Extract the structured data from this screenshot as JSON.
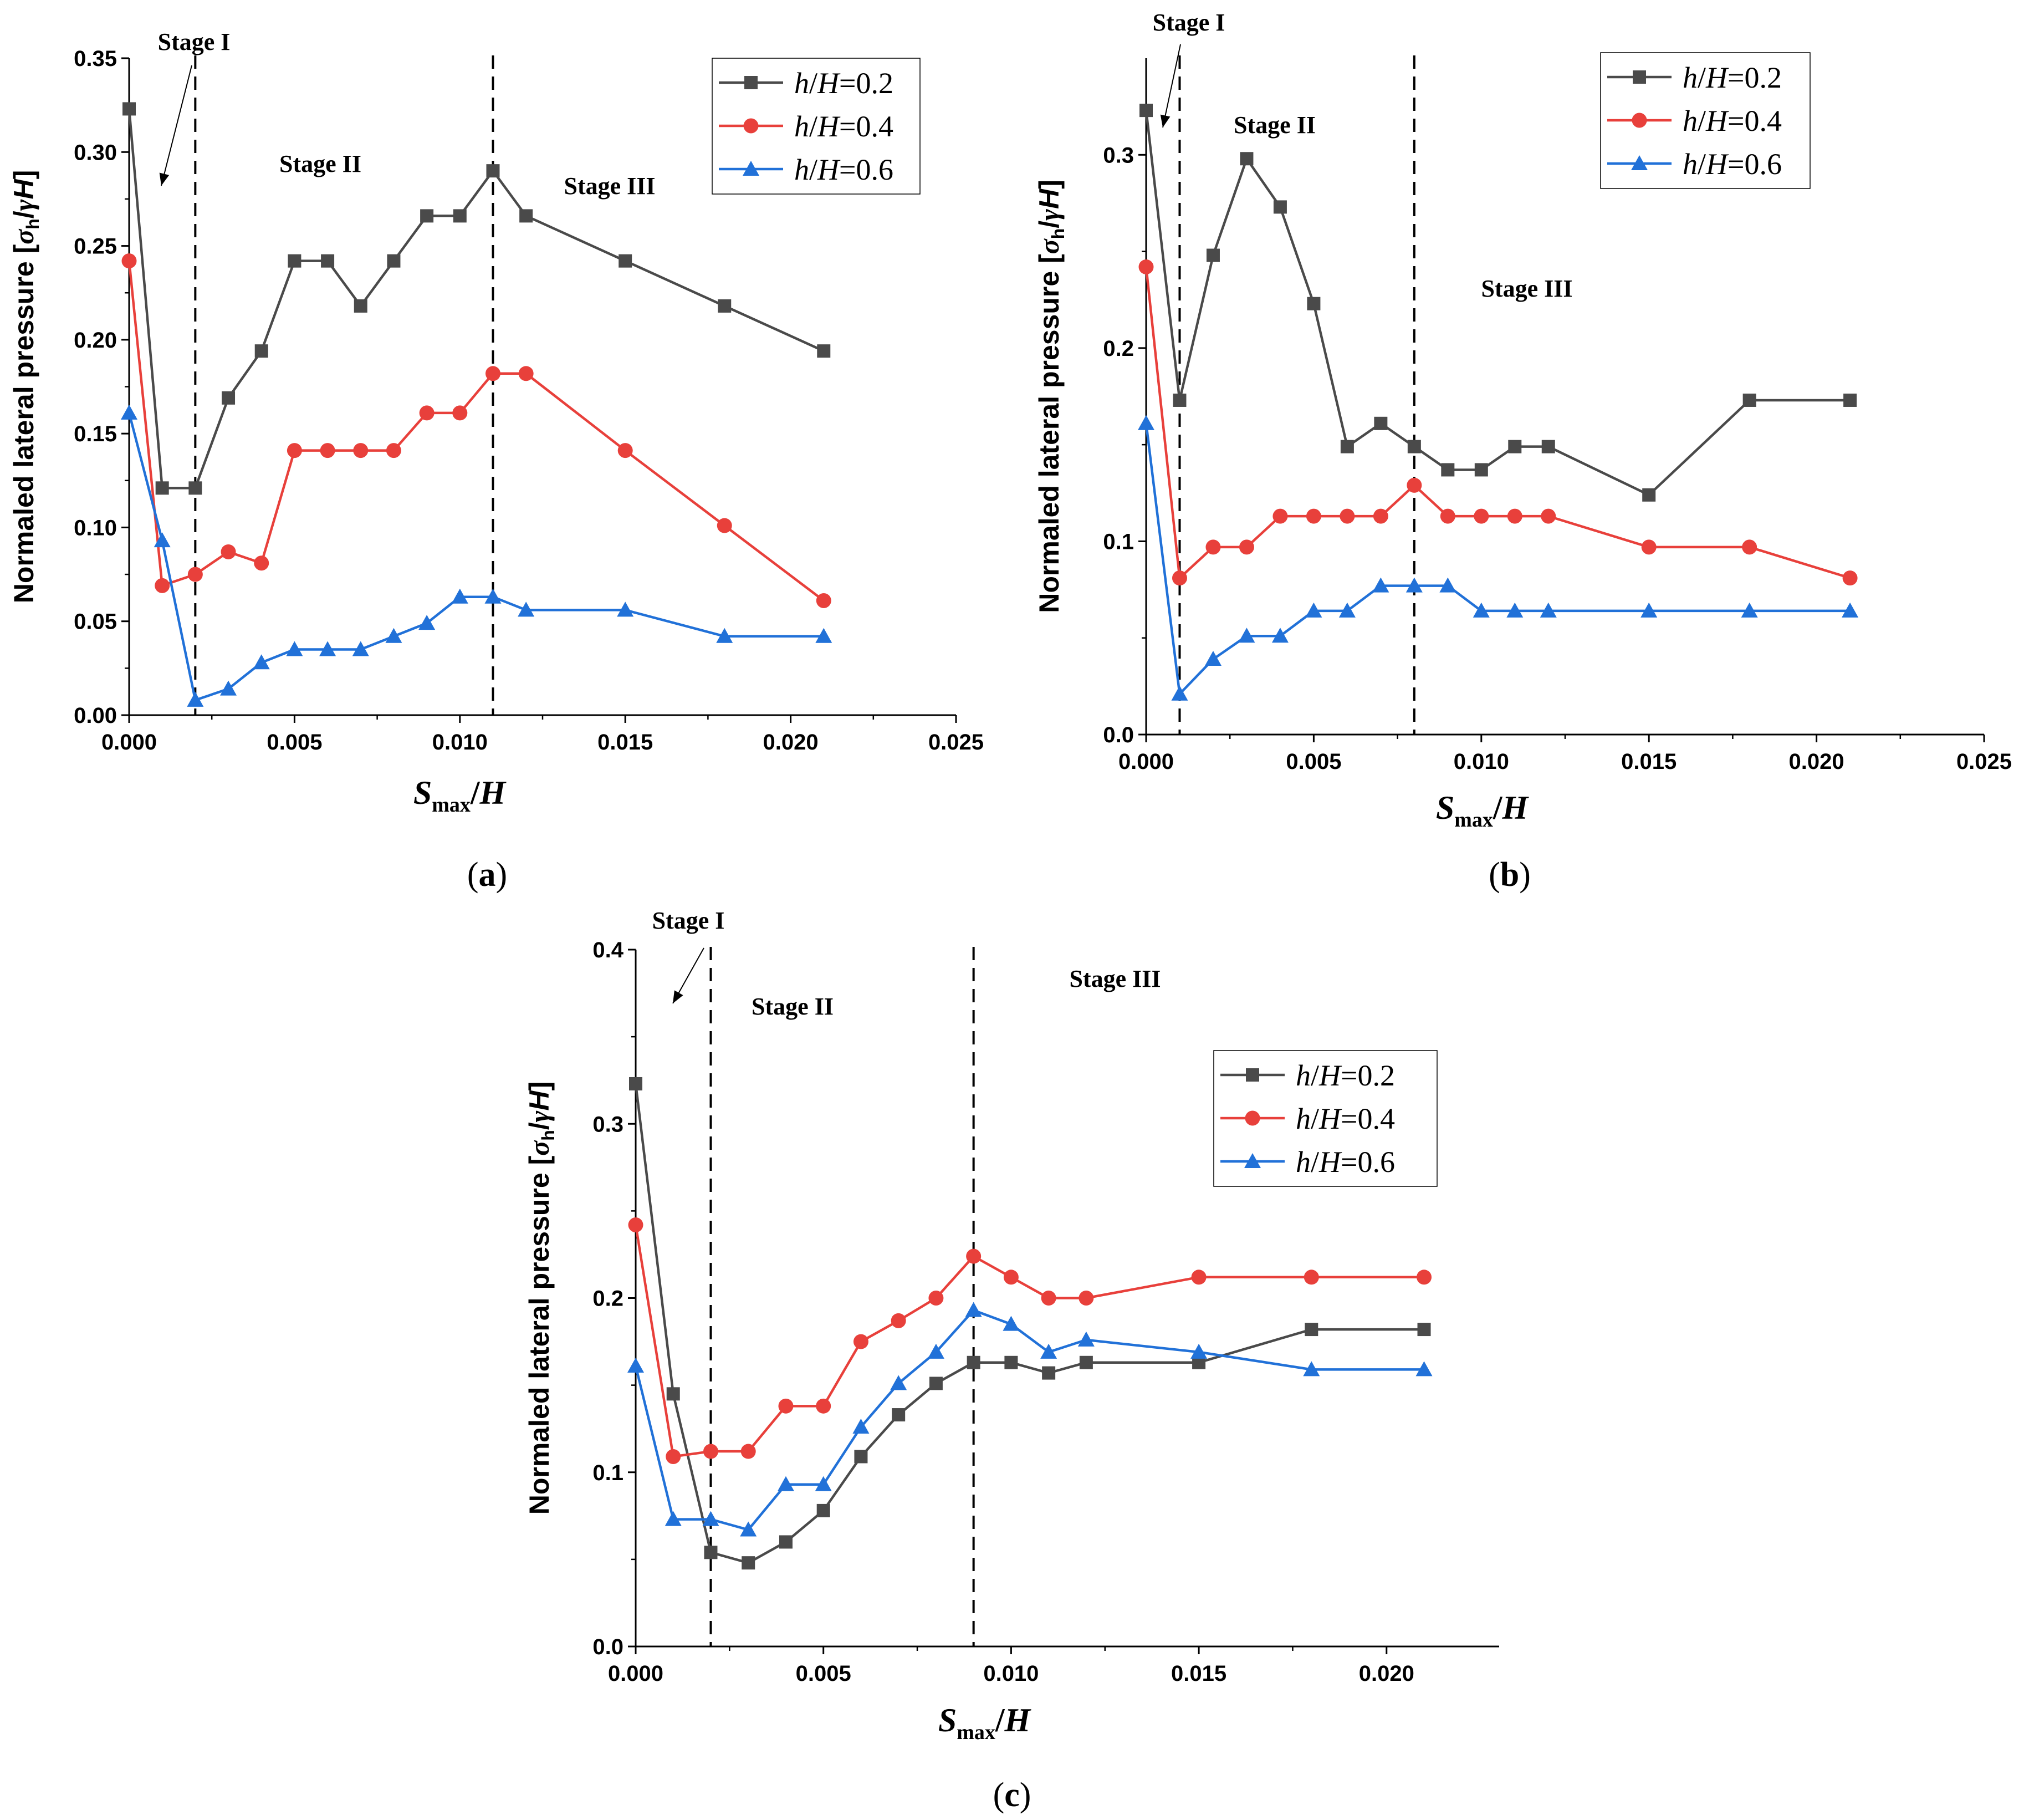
{
  "figure": {
    "colors": {
      "series_0": "#4a4a4a",
      "series_1": "#e8403b",
      "series_2": "#2171d8",
      "axis": "#000000"
    }
  },
  "chart_data": [
    {
      "type": "line",
      "panel_label": "(a)",
      "panel_letter": "a",
      "ylabel": "Normaled lateral pressure [σh/γH]",
      "xlabel": "Smax/H",
      "xlim": [
        0,
        0.025
      ],
      "ylim": [
        0,
        0.35
      ],
      "x_ticks": [
        0.0,
        0.005,
        0.01,
        0.015,
        0.02,
        0.025
      ],
      "x_tick_labels": [
        "0.000",
        "0.005",
        "0.010",
        "0.015",
        "0.020",
        "0.025"
      ],
      "y_ticks": [
        0,
        0.05,
        0.1,
        0.15,
        0.2,
        0.25,
        0.3,
        0.35
      ],
      "y_tick_labels": [
        "0.00",
        "0.05",
        "0.10",
        "0.15",
        "0.20",
        "0.25",
        "0.30",
        "0.35"
      ],
      "legend_position": "top-right",
      "stage_dividers": [
        0.002,
        0.011
      ],
      "stage_labels": [
        "Stage I",
        "Stage II",
        "Stage III"
      ],
      "x": [
        0,
        0.001,
        0.002,
        0.003,
        0.004,
        0.005,
        0.006,
        0.007,
        0.008,
        0.009,
        0.01,
        0.011,
        0.012,
        0.015,
        0.018,
        0.021
      ],
      "series": [
        {
          "name": "h/H=0.2",
          "ratio": "0.2",
          "marker": "square",
          "color": "#4a4a4a",
          "values": [
            0.323,
            0.121,
            0.121,
            0.169,
            0.194,
            0.242,
            0.242,
            0.218,
            0.242,
            0.266,
            0.266,
            0.29,
            0.266,
            0.242,
            0.218,
            0.194
          ]
        },
        {
          "name": "h/H=0.4",
          "ratio": "0.4",
          "marker": "circle",
          "color": "#e8403b",
          "values": [
            0.242,
            0.069,
            0.075,
            0.087,
            0.081,
            0.141,
            0.141,
            0.141,
            0.141,
            0.161,
            0.161,
            0.182,
            0.182,
            0.141,
            0.101,
            0.061
          ]
        },
        {
          "name": "h/H=0.6",
          "ratio": "0.6",
          "marker": "triangle",
          "color": "#2171d8",
          "values": [
            0.161,
            0.093,
            0.008,
            0.014,
            0.028,
            0.035,
            0.035,
            0.035,
            0.042,
            0.049,
            0.063,
            0.063,
            0.056,
            0.056,
            0.042,
            0.042
          ]
        }
      ]
    },
    {
      "type": "line",
      "panel_label": "(b)",
      "panel_letter": "b",
      "ylabel": "Normaled lateral pressure [σh/γH]",
      "xlabel": "Smax/H",
      "xlim": [
        0,
        0.025
      ],
      "ylim": [
        0,
        0.35
      ],
      "x_ticks": [
        0.0,
        0.005,
        0.01,
        0.015,
        0.02,
        0.025
      ],
      "x_tick_labels": [
        "0.000",
        "0.005",
        "0.010",
        "0.015",
        "0.020",
        "0.025"
      ],
      "y_ticks": [
        0,
        0.1,
        0.2,
        0.3
      ],
      "y_tick_labels": [
        "0.0",
        "0.1",
        "0.2",
        "0.3"
      ],
      "legend_position": "top-right",
      "stage_dividers": [
        0.001,
        0.008
      ],
      "stage_labels": [
        "Stage I",
        "Stage II",
        "Stage III"
      ],
      "x": [
        0,
        0.001,
        0.002,
        0.003,
        0.004,
        0.005,
        0.006,
        0.007,
        0.008,
        0.009,
        0.01,
        0.011,
        0.012,
        0.015,
        0.018,
        0.021
      ],
      "series": [
        {
          "name": "h/H=0.2",
          "ratio": "0.2",
          "marker": "square",
          "color": "#4a4a4a",
          "values": [
            0.323,
            0.173,
            0.248,
            0.298,
            0.273,
            0.223,
            0.149,
            0.161,
            0.149,
            0.137,
            0.137,
            0.149,
            0.149,
            0.124,
            0.173,
            0.173
          ]
        },
        {
          "name": "h/H=0.4",
          "ratio": "0.4",
          "marker": "circle",
          "color": "#e8403b",
          "values": [
            0.242,
            0.081,
            0.097,
            0.097,
            0.113,
            0.113,
            0.113,
            0.113,
            0.129,
            0.113,
            0.113,
            0.113,
            0.113,
            0.097,
            0.097,
            0.081
          ]
        },
        {
          "name": "h/H=0.6",
          "ratio": "0.6",
          "marker": "triangle",
          "color": "#2171d8",
          "values": [
            0.161,
            0.021,
            0.039,
            0.051,
            0.051,
            0.064,
            0.064,
            0.077,
            0.077,
            0.077,
            0.064,
            0.064,
            0.064,
            0.064,
            0.064,
            0.064
          ]
        }
      ]
    },
    {
      "type": "line",
      "panel_label": "(c)",
      "panel_letter": "c",
      "ylabel": "Normaled lateral pressure [σh/γH]",
      "xlabel": "Smax/H",
      "xlim": [
        0,
        0.023
      ],
      "ylim": [
        0,
        0.4
      ],
      "x_ticks": [
        0.0,
        0.005,
        0.01,
        0.015,
        0.02
      ],
      "x_tick_labels": [
        "0.000",
        "0.005",
        "0.010",
        "0.015",
        "0.020"
      ],
      "y_ticks": [
        0,
        0.1,
        0.2,
        0.3,
        0.4
      ],
      "y_tick_labels": [
        "0.0",
        "0.1",
        "0.2",
        "0.3",
        "0.4"
      ],
      "legend_position": "right",
      "stage_dividers": [
        0.002,
        0.009
      ],
      "stage_labels": [
        "Stage I",
        "Stage II",
        "Stage III"
      ],
      "x": [
        0,
        0.001,
        0.002,
        0.003,
        0.004,
        0.005,
        0.006,
        0.007,
        0.008,
        0.009,
        0.01,
        0.011,
        0.012,
        0.015,
        0.018,
        0.021
      ],
      "series": [
        {
          "name": "h/H=0.2",
          "ratio": "0.2",
          "marker": "square",
          "color": "#4a4a4a",
          "values": [
            0.323,
            0.145,
            0.054,
            0.048,
            0.06,
            0.078,
            0.109,
            0.133,
            0.151,
            0.163,
            0.163,
            0.157,
            0.163,
            0.163,
            0.182,
            0.182
          ]
        },
        {
          "name": "h/H=0.4",
          "ratio": "0.4",
          "marker": "circle",
          "color": "#e8403b",
          "values": [
            0.242,
            0.109,
            0.112,
            0.112,
            0.138,
            0.138,
            0.175,
            0.187,
            0.2,
            0.224,
            0.212,
            0.2,
            0.2,
            0.212,
            0.212,
            0.212
          ]
        },
        {
          "name": "h/H=0.6",
          "ratio": "0.6",
          "marker": "triangle",
          "color": "#2171d8",
          "values": [
            0.161,
            0.073,
            0.073,
            0.067,
            0.093,
            0.093,
            0.126,
            0.151,
            0.169,
            0.193,
            0.185,
            0.169,
            0.176,
            0.169,
            0.159,
            0.159
          ]
        }
      ]
    }
  ]
}
